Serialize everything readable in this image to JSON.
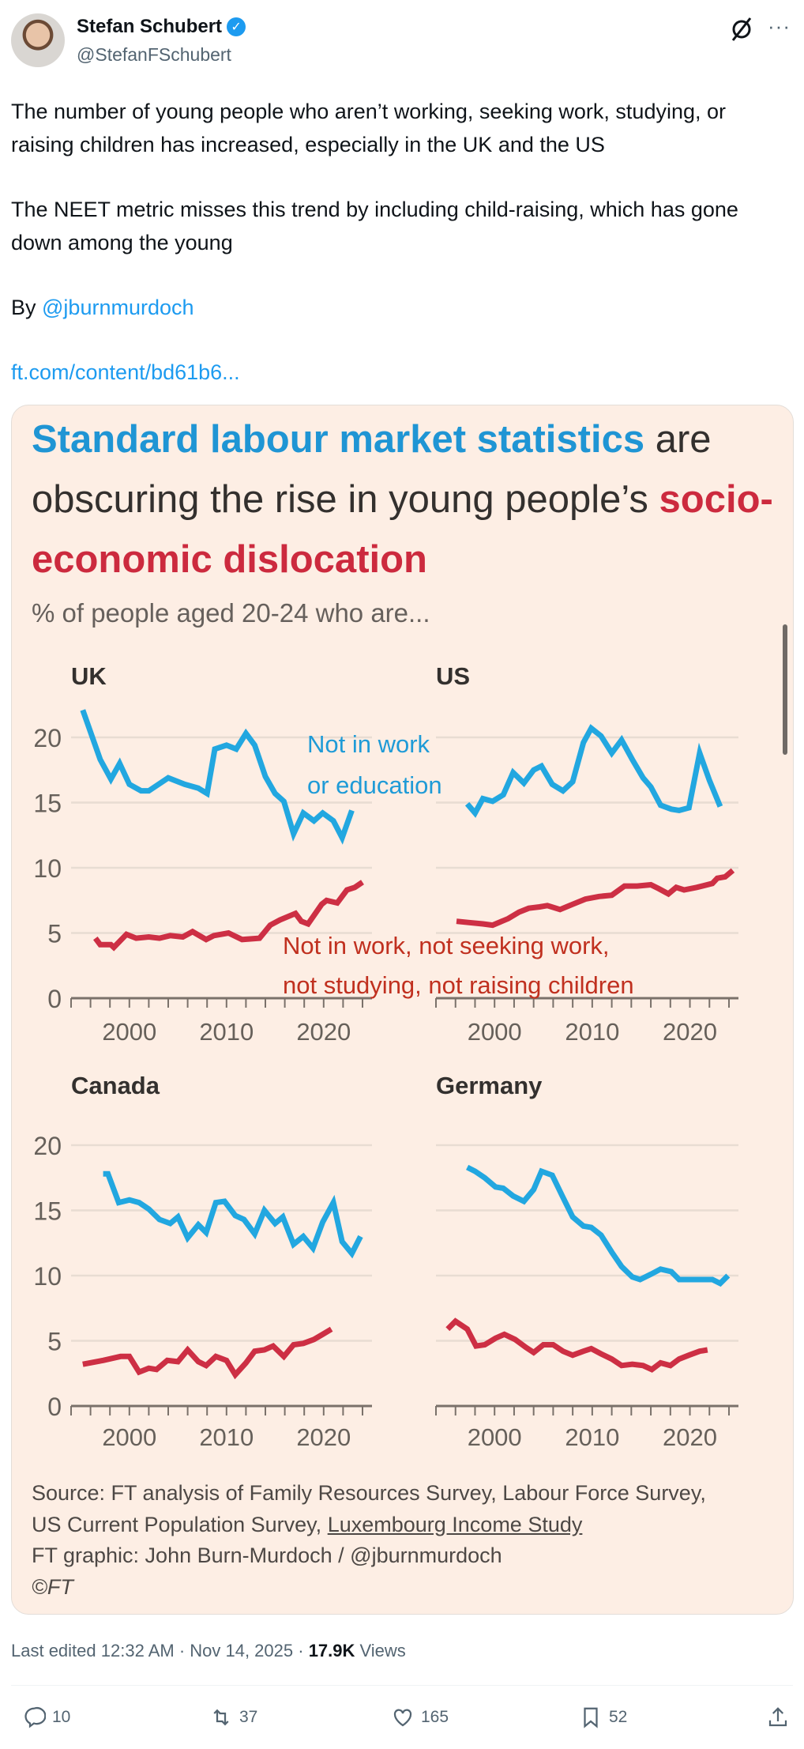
{
  "author": {
    "name": "Stefan Schubert",
    "handle": "@StefanFSchubert"
  },
  "tweet": {
    "para1": "The number of young people who aren’t working, seeking work, studying, or raising children has increased, especially in the UK and the US",
    "para2": "The NEET metric misses this trend by including child-raising, which has gone down among the young",
    "by_prefix": "By ",
    "by_mention": "@jburnmurdoch",
    "link": "ft.com/content/bd61b6..."
  },
  "card": {
    "title_blue": "Standard labour market statistics",
    "title_mid": " are obscuring the rise in young people’s ",
    "title_red": "socio-economic dislocation",
    "subtitle": "% of people aged 20-24 who are...",
    "label_blue_1": "Not in work",
    "label_blue_2": "or education",
    "label_red_1": "Not in work, not seeking work,",
    "label_red_2": "not studying, not raising children",
    "source_1": "Source: FT analysis of Family Resources Survey, Labour Force Survey,",
    "source_2a": "US Current Population Survey, ",
    "source_2b": "Luxembourg Income Study",
    "credit": "FT graphic: John Burn-Murdoch / @jburnmurdoch",
    "copyright": "©FT"
  },
  "colors": {
    "blue": "#22a7e0",
    "red": "#cd2f44",
    "grid": "#e8dcd2",
    "axis": "#7a716a"
  },
  "chart_data": {
    "type": "line",
    "ylim": [
      0,
      22
    ],
    "yticks": [
      "0",
      "5",
      "10",
      "15",
      "20"
    ],
    "xticks": [
      "2000",
      "2010",
      "2020"
    ],
    "xlim": [
      1994,
      2024
    ],
    "series_names": [
      "Not in work or education",
      "Not in work, not seeking work, not studying, not raising children"
    ],
    "panels": [
      {
        "title": "UK",
        "blue": [
          [
            1995.2,
            22.1
          ],
          [
            1997,
            18.3
          ],
          [
            1998.1,
            16.8
          ],
          [
            1999,
            18.0
          ],
          [
            2000,
            16.4
          ],
          [
            2001.2,
            15.9
          ],
          [
            2002,
            15.9
          ],
          [
            2004,
            16.9
          ],
          [
            2005.7,
            16.4
          ],
          [
            2007.1,
            16.1
          ],
          [
            2008,
            15.7
          ],
          [
            2008.8,
            19.1
          ],
          [
            2010,
            19.4
          ],
          [
            2011,
            19.1
          ],
          [
            2012,
            20.3
          ],
          [
            2012.9,
            19.4
          ],
          [
            2014,
            17.0
          ],
          [
            2015,
            15.7
          ],
          [
            2015.9,
            15.1
          ],
          [
            2016.9,
            12.6
          ],
          [
            2017.9,
            14.2
          ],
          [
            2019,
            13.6
          ],
          [
            2019.9,
            14.2
          ],
          [
            2021,
            13.6
          ],
          [
            2021.9,
            12.3
          ],
          [
            2022.9,
            14.4
          ]
        ],
        "red": [
          [
            1996.5,
            4.6
          ],
          [
            1997,
            4.1
          ],
          [
            1998.1,
            4.1
          ],
          [
            1998.4,
            3.9
          ],
          [
            1999.7,
            4.9
          ],
          [
            2000.7,
            4.6
          ],
          [
            2002,
            4.7
          ],
          [
            2003.1,
            4.6
          ],
          [
            2004.2,
            4.8
          ],
          [
            2005.5,
            4.7
          ],
          [
            2006.5,
            5.1
          ],
          [
            2007.9,
            4.5
          ],
          [
            2008.7,
            4.8
          ],
          [
            2010.2,
            5.0
          ],
          [
            2011.6,
            4.5
          ],
          [
            2013.4,
            4.6
          ],
          [
            2014.5,
            5.6
          ],
          [
            2015.5,
            6.0
          ],
          [
            2017.1,
            6.5
          ],
          [
            2017.7,
            5.9
          ],
          [
            2018.4,
            5.7
          ],
          [
            2019.8,
            7.2
          ],
          [
            2020.3,
            7.5
          ],
          [
            2021.4,
            7.3
          ],
          [
            2022.4,
            8.3
          ],
          [
            2023.2,
            8.5
          ],
          [
            2024,
            8.9
          ]
        ]
      },
      {
        "title": "US",
        "blue": [
          [
            1997.2,
            14.9
          ],
          [
            1998,
            14.2
          ],
          [
            1998.8,
            15.3
          ],
          [
            1999.8,
            15.1
          ],
          [
            2000.9,
            15.6
          ],
          [
            2001.9,
            17.3
          ],
          [
            2003,
            16.5
          ],
          [
            2004,
            17.5
          ],
          [
            2004.8,
            17.8
          ],
          [
            2005.9,
            16.4
          ],
          [
            2007,
            15.9
          ],
          [
            2008,
            16.6
          ],
          [
            2009.1,
            19.6
          ],
          [
            2009.9,
            20.7
          ],
          [
            2010.9,
            20.1
          ],
          [
            2012,
            18.8
          ],
          [
            2013,
            19.8
          ],
          [
            2014.1,
            18.3
          ],
          [
            2015.2,
            16.9
          ],
          [
            2016,
            16.2
          ],
          [
            2017,
            14.8
          ],
          [
            2018.1,
            14.5
          ],
          [
            2018.9,
            14.4
          ],
          [
            2019.9,
            14.6
          ],
          [
            2021,
            18.8
          ],
          [
            2022,
            16.7
          ],
          [
            2023.1,
            14.7
          ]
        ],
        "red": [
          [
            1996.1,
            5.9
          ],
          [
            1997.4,
            5.8
          ],
          [
            1998.8,
            5.7
          ],
          [
            1999.8,
            5.6
          ],
          [
            2001.4,
            6.1
          ],
          [
            2002.5,
            6.6
          ],
          [
            2003.5,
            6.9
          ],
          [
            2004.6,
            7.0
          ],
          [
            2005.4,
            7.1
          ],
          [
            2006.7,
            6.8
          ],
          [
            2008,
            7.2
          ],
          [
            2009.3,
            7.6
          ],
          [
            2010.7,
            7.8
          ],
          [
            2012,
            7.9
          ],
          [
            2013.3,
            8.6
          ],
          [
            2014.6,
            8.6
          ],
          [
            2016,
            8.7
          ],
          [
            2016.8,
            8.4
          ],
          [
            2017.8,
            8.0
          ],
          [
            2018.6,
            8.5
          ],
          [
            2019.4,
            8.3
          ],
          [
            2020.7,
            8.5
          ],
          [
            2022.3,
            8.8
          ],
          [
            2022.8,
            9.2
          ],
          [
            2023.6,
            9.3
          ],
          [
            2024.4,
            9.8
          ]
        ]
      },
      {
        "title": "Canada",
        "blue": [
          [
            1997.3,
            17.8
          ],
          [
            1997.8,
            17.8
          ],
          [
            1998.9,
            15.6
          ],
          [
            2000,
            15.8
          ],
          [
            2001,
            15.6
          ],
          [
            2002,
            15.1
          ],
          [
            2003.1,
            14.3
          ],
          [
            2004.2,
            14.0
          ],
          [
            2005,
            14.5
          ],
          [
            2006,
            12.9
          ],
          [
            2007.1,
            13.9
          ],
          [
            2007.9,
            13.3
          ],
          [
            2008.9,
            15.6
          ],
          [
            2009.8,
            15.7
          ],
          [
            2010.9,
            14.6
          ],
          [
            2011.8,
            14.3
          ],
          [
            2012.9,
            13.2
          ],
          [
            2013.9,
            15.0
          ],
          [
            2015,
            14.0
          ],
          [
            2015.8,
            14.5
          ],
          [
            2016.9,
            12.4
          ],
          [
            2017.9,
            13.0
          ],
          [
            2018.9,
            12.1
          ],
          [
            2019.9,
            14.1
          ],
          [
            2021,
            15.6
          ],
          [
            2021.9,
            12.6
          ],
          [
            2022.9,
            11.7
          ],
          [
            2023.8,
            13.0
          ]
        ],
        "red": [
          [
            1995.2,
            3.2
          ],
          [
            1997.3,
            3.5
          ],
          [
            1999.1,
            3.8
          ],
          [
            2000,
            3.8
          ],
          [
            2001,
            2.6
          ],
          [
            2002,
            2.9
          ],
          [
            2002.8,
            2.8
          ],
          [
            2003.9,
            3.5
          ],
          [
            2005,
            3.4
          ],
          [
            2006,
            4.3
          ],
          [
            2007.1,
            3.4
          ],
          [
            2007.9,
            3.1
          ],
          [
            2008.9,
            3.8
          ],
          [
            2010,
            3.5
          ],
          [
            2010.9,
            2.4
          ],
          [
            2012,
            3.3
          ],
          [
            2012.9,
            4.2
          ],
          [
            2013.9,
            4.3
          ],
          [
            2014.8,
            4.6
          ],
          [
            2015.9,
            3.8
          ],
          [
            2016.9,
            4.7
          ],
          [
            2017.9,
            4.8
          ],
          [
            2019,
            5.1
          ],
          [
            2019.9,
            5.5
          ],
          [
            2020.8,
            5.9
          ]
        ]
      },
      {
        "title": "Germany",
        "blue": [
          [
            1997.2,
            18.3
          ],
          [
            1998,
            18.0
          ],
          [
            1999,
            17.5
          ],
          [
            2000.1,
            16.8
          ],
          [
            2000.9,
            16.7
          ],
          [
            2001.9,
            16.1
          ],
          [
            2003,
            15.7
          ],
          [
            2004,
            16.6
          ],
          [
            2004.8,
            18.0
          ],
          [
            2005.9,
            17.7
          ],
          [
            2007,
            16.0
          ],
          [
            2008,
            14.5
          ],
          [
            2009.1,
            13.8
          ],
          [
            2009.9,
            13.7
          ],
          [
            2010.9,
            13.1
          ],
          [
            2012,
            11.8
          ],
          [
            2013,
            10.7
          ],
          [
            2014.1,
            9.9
          ],
          [
            2014.9,
            9.7
          ],
          [
            2016,
            10.1
          ],
          [
            2017,
            10.5
          ],
          [
            2018.1,
            10.3
          ],
          [
            2018.9,
            9.7
          ],
          [
            2019.9,
            9.7
          ],
          [
            2021.8,
            9.7
          ],
          [
            2022.3,
            9.7
          ],
          [
            2023.1,
            9.4
          ],
          [
            2023.9,
            10.0
          ]
        ],
        "red": [
          [
            1995.2,
            5.9
          ],
          [
            1996,
            6.5
          ],
          [
            1997.2,
            5.9
          ],
          [
            1998.1,
            4.6
          ],
          [
            1999,
            4.7
          ],
          [
            2000.1,
            5.2
          ],
          [
            2001,
            5.5
          ],
          [
            2002.1,
            5.1
          ],
          [
            2003.2,
            4.5
          ],
          [
            2004,
            4.1
          ],
          [
            2005,
            4.7
          ],
          [
            2006,
            4.7
          ],
          [
            2007,
            4.2
          ],
          [
            2008,
            3.9
          ],
          [
            2009.1,
            4.2
          ],
          [
            2009.9,
            4.4
          ],
          [
            2010.9,
            4.0
          ],
          [
            2012,
            3.6
          ],
          [
            2013,
            3.1
          ],
          [
            2014.1,
            3.2
          ],
          [
            2015.2,
            3.1
          ],
          [
            2016.1,
            2.8
          ],
          [
            2017,
            3.3
          ],
          [
            2018,
            3.1
          ],
          [
            2018.9,
            3.6
          ],
          [
            2019.9,
            3.9
          ],
          [
            2021,
            4.2
          ],
          [
            2021.8,
            4.3
          ]
        ]
      }
    ]
  },
  "footer": {
    "edited": "Last edited 12:32 AM · Nov 14, 2025 · ",
    "views_count": "17.9K",
    "views_label": " Views",
    "replies": "10",
    "reposts": "37",
    "likes": "165",
    "bookmarks": "52"
  }
}
